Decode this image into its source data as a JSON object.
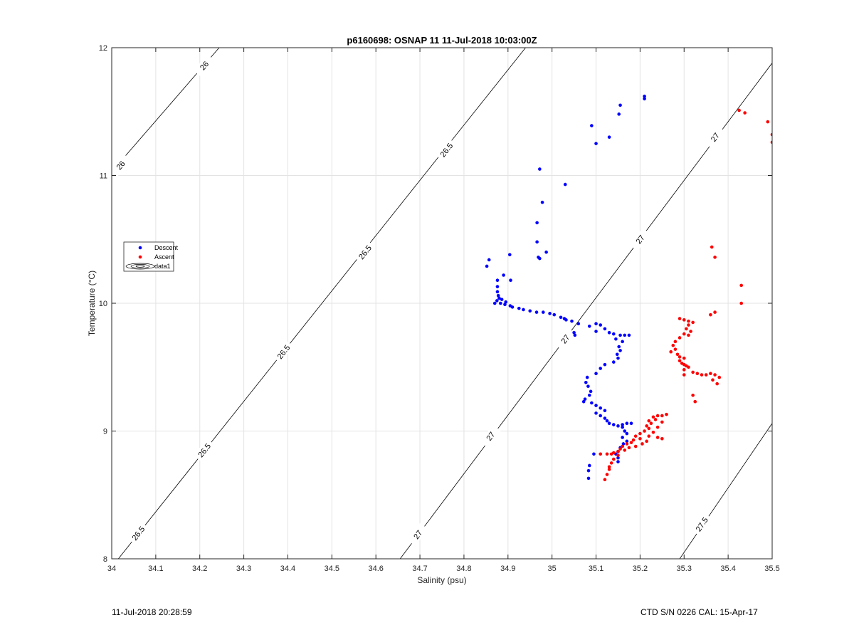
{
  "chart_data": {
    "type": "scatter",
    "title": "p6160698: OSNAP 11 11-Jul-2018 10:03:00Z",
    "xlabel": "Salinity (psu)",
    "ylabel": "Temperature (°C)",
    "xlim": [
      34,
      35.5
    ],
    "ylim": [
      8,
      12
    ],
    "xticks": [
      34,
      34.1,
      34.2,
      34.3,
      34.4,
      34.5,
      34.6,
      34.7,
      34.8,
      34.9,
      35,
      35.1,
      35.2,
      35.3,
      35.4,
      35.5
    ],
    "yticks": [
      8,
      9,
      10,
      11,
      12
    ],
    "grid": true,
    "legend": {
      "placement": "left",
      "entries": [
        {
          "name": "Descent",
          "color": "#0000ff",
          "marker": "dot"
        },
        {
          "name": "Ascent",
          "color": "#ff0000",
          "marker": "dot"
        },
        {
          "name": "data1",
          "marker": "contour"
        }
      ]
    },
    "contours": [
      {
        "label": "26",
        "points": [
          [
            34.0,
            11.03
          ],
          [
            34.244,
            12.0
          ]
        ],
        "label_positions": [
          [
            34.02,
            11.08
          ],
          [
            34.21,
            11.86
          ]
        ]
      },
      {
        "label": "26.5",
        "points": [
          [
            34.015,
            8.0
          ],
          [
            34.94,
            12.0
          ]
        ],
        "label_positions": [
          [
            34.06,
            8.2
          ],
          [
            34.21,
            8.85
          ],
          [
            34.39,
            9.62
          ],
          [
            34.575,
            10.4
          ],
          [
            34.76,
            11.2
          ]
        ]
      },
      {
        "label": "27",
        "points": [
          [
            34.655,
            8.0
          ],
          [
            35.5,
            11.88
          ]
        ],
        "label_positions": [
          [
            34.695,
            8.19
          ],
          [
            34.86,
            8.96
          ],
          [
            35.03,
            9.72
          ],
          [
            35.2,
            10.5
          ],
          [
            35.37,
            11.3
          ]
        ]
      },
      {
        "label": "27.5",
        "points": [
          [
            35.29,
            8.0
          ],
          [
            35.5,
            9.06
          ]
        ],
        "label_positions": [
          [
            35.34,
            8.27
          ]
        ]
      }
    ],
    "series": [
      {
        "name": "Descent",
        "color": "#0000ff",
        "points": [
          [
            35.21,
            11.62
          ],
          [
            35.21,
            11.6
          ],
          [
            35.155,
            11.55
          ],
          [
            35.152,
            11.48
          ],
          [
            35.09,
            11.39
          ],
          [
            35.13,
            11.3
          ],
          [
            35.1,
            11.25
          ],
          [
            34.972,
            11.05
          ],
          [
            35.03,
            10.93
          ],
          [
            34.978,
            10.79
          ],
          [
            34.966,
            10.63
          ],
          [
            34.966,
            10.48
          ],
          [
            34.987,
            10.4
          ],
          [
            34.904,
            10.38
          ],
          [
            34.969,
            10.36
          ],
          [
            34.972,
            10.35
          ],
          [
            34.857,
            10.34
          ],
          [
            34.852,
            10.29
          ],
          [
            34.89,
            10.22
          ],
          [
            34.876,
            10.18
          ],
          [
            34.906,
            10.18
          ],
          [
            34.876,
            10.13
          ],
          [
            34.876,
            10.09
          ],
          [
            34.878,
            10.06
          ],
          [
            34.88,
            10.04
          ],
          [
            34.875,
            10.02
          ],
          [
            34.886,
            10.03
          ],
          [
            34.895,
            10.01
          ],
          [
            34.87,
            10.0
          ],
          [
            34.883,
            10.0
          ],
          [
            34.893,
            9.99
          ],
          [
            34.905,
            9.98
          ],
          [
            34.91,
            9.97
          ],
          [
            34.925,
            9.96
          ],
          [
            34.935,
            9.95
          ],
          [
            34.95,
            9.94
          ],
          [
            34.965,
            9.93
          ],
          [
            34.98,
            9.93
          ],
          [
            34.995,
            9.92
          ],
          [
            35.005,
            9.91
          ],
          [
            35.02,
            9.89
          ],
          [
            35.028,
            9.88
          ],
          [
            35.032,
            9.87
          ],
          [
            35.045,
            9.86
          ],
          [
            35.06,
            9.84
          ],
          [
            35.1,
            9.84
          ],
          [
            35.11,
            9.83
          ],
          [
            35.085,
            9.82
          ],
          [
            35.12,
            9.8
          ],
          [
            35.1,
            9.78
          ],
          [
            35.13,
            9.77
          ],
          [
            35.14,
            9.76
          ],
          [
            35.155,
            9.75
          ],
          [
            35.165,
            9.75
          ],
          [
            35.175,
            9.75
          ],
          [
            35.052,
            9.75
          ],
          [
            35.05,
            9.77
          ],
          [
            35.145,
            9.72
          ],
          [
            35.16,
            9.7
          ],
          [
            35.152,
            9.66
          ],
          [
            35.155,
            9.63
          ],
          [
            35.148,
            9.6
          ],
          [
            35.15,
            9.57
          ],
          [
            35.14,
            9.54
          ],
          [
            35.12,
            9.52
          ],
          [
            35.11,
            9.49
          ],
          [
            35.1,
            9.45
          ],
          [
            35.08,
            9.42
          ],
          [
            35.077,
            9.38
          ],
          [
            35.082,
            9.35
          ],
          [
            35.088,
            9.31
          ],
          [
            35.085,
            9.28
          ],
          [
            35.075,
            9.25
          ],
          [
            35.072,
            9.23
          ],
          [
            35.09,
            9.22
          ],
          [
            35.1,
            9.2
          ],
          [
            35.11,
            9.18
          ],
          [
            35.12,
            9.16
          ],
          [
            35.1,
            9.14
          ],
          [
            35.11,
            9.12
          ],
          [
            35.12,
            9.1
          ],
          [
            35.125,
            9.08
          ],
          [
            35.13,
            9.06
          ],
          [
            35.14,
            9.05
          ],
          [
            35.15,
            9.04
          ],
          [
            35.16,
            9.05
          ],
          [
            35.17,
            9.06
          ],
          [
            35.18,
            9.06
          ],
          [
            35.16,
            9.03
          ],
          [
            35.165,
            9.0
          ],
          [
            35.17,
            8.98
          ],
          [
            35.16,
            8.95
          ],
          [
            35.17,
            8.92
          ],
          [
            35.162,
            8.9
          ],
          [
            35.155,
            8.87
          ],
          [
            35.15,
            8.84
          ],
          [
            35.145,
            8.82
          ],
          [
            35.15,
            8.79
          ],
          [
            35.15,
            8.76
          ],
          [
            35.095,
            8.82
          ],
          [
            35.085,
            8.73
          ],
          [
            35.083,
            8.69
          ],
          [
            35.083,
            8.63
          ]
        ]
      },
      {
        "name": "Ascent",
        "color": "#ff0000",
        "points": [
          [
            35.425,
            11.51
          ],
          [
            35.438,
            11.49
          ],
          [
            35.49,
            11.42
          ],
          [
            35.5,
            11.32
          ],
          [
            35.5,
            11.26
          ],
          [
            35.363,
            10.44
          ],
          [
            35.37,
            10.36
          ],
          [
            35.43,
            10.14
          ],
          [
            35.43,
            10.0
          ],
          [
            35.37,
            9.93
          ],
          [
            35.36,
            9.91
          ],
          [
            35.29,
            9.88
          ],
          [
            35.3,
            9.87
          ],
          [
            35.31,
            9.86
          ],
          [
            35.32,
            9.85
          ],
          [
            35.31,
            9.83
          ],
          [
            35.305,
            9.8
          ],
          [
            35.315,
            9.78
          ],
          [
            35.3,
            9.76
          ],
          [
            35.31,
            9.75
          ],
          [
            35.29,
            9.73
          ],
          [
            35.28,
            9.7
          ],
          [
            35.275,
            9.67
          ],
          [
            35.28,
            9.64
          ],
          [
            35.27,
            9.62
          ],
          [
            35.285,
            9.6
          ],
          [
            35.29,
            9.58
          ],
          [
            35.3,
            9.57
          ],
          [
            35.29,
            9.55
          ],
          [
            35.295,
            9.53
          ],
          [
            35.3,
            9.52
          ],
          [
            35.305,
            9.51
          ],
          [
            35.31,
            9.5
          ],
          [
            35.3,
            9.48
          ],
          [
            35.32,
            9.46
          ],
          [
            35.33,
            9.45
          ],
          [
            35.34,
            9.44
          ],
          [
            35.35,
            9.44
          ],
          [
            35.36,
            9.45
          ],
          [
            35.37,
            9.44
          ],
          [
            35.38,
            9.42
          ],
          [
            35.365,
            9.4
          ],
          [
            35.375,
            9.37
          ],
          [
            35.32,
            9.28
          ],
          [
            35.325,
            9.23
          ],
          [
            35.3,
            9.44
          ],
          [
            35.26,
            9.13
          ],
          [
            35.25,
            9.12
          ],
          [
            35.24,
            9.12
          ],
          [
            35.23,
            9.11
          ],
          [
            35.235,
            9.09
          ],
          [
            35.22,
            9.08
          ],
          [
            35.225,
            9.06
          ],
          [
            35.215,
            9.04
          ],
          [
            35.22,
            9.02
          ],
          [
            35.21,
            9.0
          ],
          [
            35.2,
            8.98
          ],
          [
            35.19,
            8.96
          ],
          [
            35.2,
            8.94
          ],
          [
            35.22,
            8.96
          ],
          [
            35.24,
            8.95
          ],
          [
            35.25,
            8.94
          ],
          [
            35.185,
            8.93
          ],
          [
            35.18,
            8.91
          ],
          [
            35.17,
            8.9
          ],
          [
            35.16,
            8.88
          ],
          [
            35.155,
            8.86
          ],
          [
            35.15,
            8.84
          ],
          [
            35.14,
            8.83
          ],
          [
            35.15,
            8.81
          ],
          [
            35.135,
            8.82
          ],
          [
            35.125,
            8.82
          ],
          [
            35.11,
            8.82
          ],
          [
            35.14,
            8.78
          ],
          [
            35.135,
            8.75
          ],
          [
            35.13,
            8.72
          ],
          [
            35.13,
            8.7
          ],
          [
            35.125,
            8.66
          ],
          [
            35.12,
            8.62
          ],
          [
            35.165,
            8.85
          ],
          [
            35.175,
            8.87
          ],
          [
            35.19,
            8.88
          ],
          [
            35.205,
            8.9
          ],
          [
            35.215,
            8.92
          ],
          [
            35.23,
            8.99
          ],
          [
            35.24,
            9.03
          ],
          [
            35.25,
            9.07
          ]
        ]
      }
    ]
  },
  "footer": {
    "left": "11-Jul-2018 20:28:59",
    "right": "CTD S/N 0226  CAL: 15-Apr-17"
  }
}
